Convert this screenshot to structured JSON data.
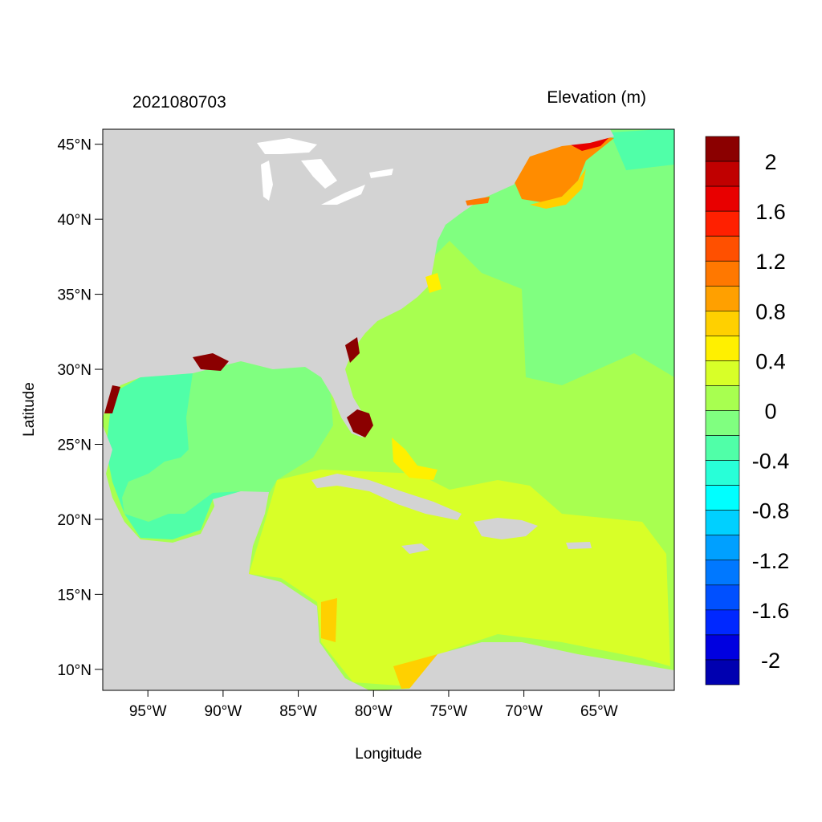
{
  "figure": {
    "date_label": "2021080703",
    "variable_label": "Elevation (m)",
    "x_axis_title": "Longitude",
    "y_axis_title": "Latitude"
  },
  "map": {
    "lon_range": [
      -98,
      -60
    ],
    "lat_range": [
      8.6,
      46
    ],
    "lon_ticks": [
      {
        "value": -95,
        "label": "95°W"
      },
      {
        "value": -90,
        "label": "90°W"
      },
      {
        "value": -85,
        "label": "85°W"
      },
      {
        "value": -80,
        "label": "80°W"
      },
      {
        "value": -75,
        "label": "75°W"
      },
      {
        "value": -70,
        "label": "70°W"
      },
      {
        "value": -65,
        "label": "65°W"
      }
    ],
    "lat_ticks": [
      {
        "value": 45,
        "label": "45°N"
      },
      {
        "value": 40,
        "label": "40°N"
      },
      {
        "value": 35,
        "label": "35°N"
      },
      {
        "value": 30,
        "label": "30°N"
      },
      {
        "value": 25,
        "label": "25°N"
      },
      {
        "value": 20,
        "label": "20°N"
      },
      {
        "value": 15,
        "label": "15°N"
      },
      {
        "value": 10,
        "label": "10°N"
      }
    ],
    "land_color": "#d3d3d3",
    "open_ocean_color": "#80ff80",
    "regions": [
      {
        "name": "gulf-of-mexico",
        "level": -0.3,
        "color": "#50ffa8"
      },
      {
        "name": "caribbean-sea",
        "level": 0.3,
        "color": "#d8ff28"
      },
      {
        "name": "western-atlantic",
        "level": 0.1,
        "color": "#a8ff50"
      },
      {
        "name": "gulf-of-maine",
        "level": 1.0,
        "color": "#ff8c00"
      },
      {
        "name": "south-florida-coast",
        "level": 2.2,
        "color": "#8b0000"
      }
    ]
  },
  "colorbar": {
    "colors": [
      "#8b0000",
      "#c00000",
      "#e80000",
      "#ff2000",
      "#ff5000",
      "#ff7800",
      "#ffa000",
      "#ffd000",
      "#fff000",
      "#d8ff28",
      "#a8ff50",
      "#80ff80",
      "#50ffa8",
      "#28ffd8",
      "#00ffff",
      "#00d0ff",
      "#00a0ff",
      "#0078ff",
      "#0050ff",
      "#0028ff",
      "#0000e0",
      "#0000b0"
    ],
    "labels": [
      "2",
      "1.6",
      "1.2",
      "0.8",
      "0.4",
      "0",
      "-0.4",
      "-0.8",
      "-1.2",
      "-1.6",
      "-2"
    ]
  }
}
